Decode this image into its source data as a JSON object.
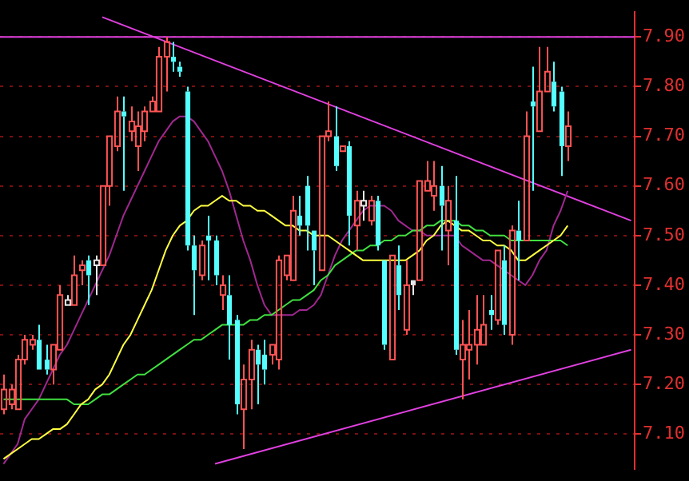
{
  "chart_data": {
    "type": "candlestick",
    "categories": [
      null,
      null,
      null,
      null,
      null,
      null,
      null,
      null,
      null,
      null,
      null,
      null,
      null,
      null,
      null,
      null,
      null,
      null,
      null,
      null,
      null,
      null,
      null,
      null,
      null,
      null,
      null,
      null,
      null,
      null,
      null,
      null,
      null,
      null,
      null,
      null,
      null,
      null,
      null,
      null,
      null,
      null,
      null,
      null,
      null,
      null,
      null,
      null,
      null,
      null,
      null,
      null,
      null,
      null,
      null,
      null,
      null,
      null,
      null,
      null,
      null,
      null,
      null,
      null,
      null,
      null,
      null,
      null,
      null,
      null,
      null,
      null,
      null,
      null,
      null,
      null,
      null,
      null,
      null,
      null,
      null,
      null,
      null,
      null,
      null,
      null,
      null,
      null,
      null,
      null
    ],
    "ohlc": [
      [
        7.15,
        7.22,
        7.14,
        7.19
      ],
      [
        7.16,
        7.2,
        7.15,
        7.19
      ],
      [
        7.15,
        7.26,
        7.15,
        7.25
      ],
      [
        7.25,
        7.3,
        7.24,
        7.29
      ],
      [
        7.28,
        7.3,
        7.27,
        7.29
      ],
      [
        7.29,
        7.32,
        7.23,
        7.23
      ],
      [
        7.25,
        7.28,
        7.22,
        7.23
      ],
      [
        7.23,
        7.28,
        7.2,
        7.28
      ],
      [
        7.27,
        7.4,
        7.27,
        7.38
      ],
      [
        7.36,
        7.38,
        7.36,
        7.37
      ],
      [
        7.36,
        7.46,
        7.36,
        7.42
      ],
      [
        7.43,
        7.45,
        7.4,
        7.44
      ],
      [
        7.45,
        7.46,
        7.36,
        7.42
      ],
      [
        7.44,
        7.46,
        7.38,
        7.45
      ],
      [
        7.44,
        7.6,
        7.44,
        7.6
      ],
      [
        7.6,
        7.7,
        7.56,
        7.7
      ],
      [
        7.68,
        7.78,
        7.67,
        7.75
      ],
      [
        7.75,
        7.78,
        7.59,
        7.74
      ],
      [
        7.71,
        7.76,
        7.69,
        7.73
      ],
      [
        7.68,
        7.75,
        7.63,
        7.72
      ],
      [
        7.71,
        7.76,
        7.69,
        7.75
      ],
      [
        7.75,
        7.78,
        7.75,
        7.77
      ],
      [
        7.75,
        7.88,
        7.75,
        7.86
      ],
      [
        7.86,
        7.9,
        7.79,
        7.89
      ],
      [
        7.86,
        7.89,
        7.83,
        7.85
      ],
      [
        7.84,
        7.85,
        7.82,
        7.83
      ],
      [
        7.79,
        7.8,
        7.47,
        7.48
      ],
      [
        7.48,
        7.5,
        7.34,
        7.43
      ],
      [
        7.42,
        7.49,
        7.41,
        7.48
      ],
      [
        7.5,
        7.54,
        7.41,
        7.49
      ],
      [
        7.49,
        7.5,
        7.4,
        7.42
      ],
      [
        7.38,
        7.42,
        7.35,
        7.4
      ],
      [
        7.38,
        7.42,
        7.25,
        7.32
      ],
      [
        7.33,
        7.34,
        7.14,
        7.16
      ],
      [
        7.15,
        7.24,
        7.07,
        7.21
      ],
      [
        7.21,
        7.29,
        7.15,
        7.27
      ],
      [
        7.27,
        7.28,
        7.16,
        7.24
      ],
      [
        7.26,
        7.29,
        7.2,
        7.23
      ],
      [
        7.26,
        7.28,
        7.24,
        7.28
      ],
      [
        7.25,
        7.46,
        7.23,
        7.45
      ],
      [
        7.42,
        7.46,
        7.41,
        7.46
      ],
      [
        7.41,
        7.58,
        7.41,
        7.55
      ],
      [
        7.54,
        7.58,
        7.5,
        7.52
      ],
      [
        7.6,
        7.62,
        7.47,
        7.52
      ],
      [
        7.51,
        7.51,
        7.4,
        7.47
      ],
      [
        7.43,
        7.7,
        7.43,
        7.7
      ],
      [
        7.7,
        7.77,
        7.69,
        7.71
      ],
      [
        7.7,
        7.76,
        7.63,
        7.64
      ],
      [
        7.67,
        7.68,
        7.67,
        7.68
      ],
      [
        7.68,
        7.69,
        7.48,
        7.54
      ],
      [
        7.52,
        7.59,
        7.47,
        7.57
      ],
      [
        7.56,
        7.59,
        7.53,
        7.57
      ],
      [
        7.53,
        7.58,
        7.52,
        7.57
      ],
      [
        7.57,
        7.58,
        7.47,
        7.48
      ],
      [
        7.45,
        7.45,
        7.27,
        7.28
      ],
      [
        7.25,
        7.46,
        7.25,
        7.46
      ],
      [
        7.44,
        7.48,
        7.35,
        7.38
      ],
      [
        7.31,
        7.45,
        7.3,
        7.4
      ],
      [
        7.41,
        7.41,
        7.38,
        7.4
      ],
      [
        7.41,
        7.61,
        7.41,
        7.61
      ],
      [
        7.59,
        7.65,
        7.59,
        7.61
      ],
      [
        7.58,
        7.65,
        7.55,
        7.6
      ],
      [
        7.6,
        7.64,
        7.47,
        7.56
      ],
      [
        7.51,
        7.6,
        7.44,
        7.57
      ],
      [
        7.53,
        7.62,
        7.26,
        7.27
      ],
      [
        7.25,
        7.33,
        7.17,
        7.28
      ],
      [
        7.27,
        7.35,
        7.21,
        7.28
      ],
      [
        7.28,
        7.38,
        7.24,
        7.31
      ],
      [
        7.28,
        7.38,
        7.28,
        7.32
      ],
      [
        7.35,
        7.38,
        7.31,
        7.34
      ],
      [
        7.33,
        7.47,
        7.32,
        7.47
      ],
      [
        7.45,
        7.48,
        7.3,
        7.32
      ],
      [
        7.3,
        7.52,
        7.28,
        7.51
      ],
      [
        7.51,
        7.57,
        7.41,
        7.49
      ],
      [
        7.49,
        7.75,
        7.49,
        7.7
      ],
      [
        7.77,
        7.84,
        7.59,
        7.76
      ],
      [
        7.71,
        7.88,
        7.71,
        7.79
      ],
      [
        7.79,
        7.88,
        7.79,
        7.83
      ],
      [
        7.81,
        7.85,
        7.75,
        7.76
      ],
      [
        7.79,
        7.8,
        7.62,
        7.68
      ],
      [
        7.68,
        7.75,
        7.65,
        7.72
      ],
      null,
      null,
      null,
      null,
      null,
      null,
      null,
      null,
      null
    ],
    "colors": [
      "#ff5454",
      "#ff5454",
      "#ff5454",
      "#ff5454",
      "#ff5454",
      "#54ffff",
      "#54ffff",
      "#ff5454",
      "#ff5454",
      "#e8e8e8",
      "#ff5454",
      "#ff5454",
      "#54ffff",
      "#e8e8e8",
      "#ff5454",
      "#ff5454",
      "#ff5454",
      "#54ffff",
      "#ff5454",
      "#ff5454",
      "#ff5454",
      "#ff5454",
      "#ff5454",
      "#ff5454",
      "#54ffff",
      "#54ffff",
      "#54ffff",
      "#54ffff",
      "#ff5454",
      "#54ffff",
      "#54ffff",
      "#ff5454",
      "#54ffff",
      "#54ffff",
      "#ff5454",
      "#ff5454",
      "#54ffff",
      "#54ffff",
      "#ff5454",
      "#ff5454",
      "#ff5454",
      "#ff5454",
      "#54ffff",
      "#54ffff",
      "#54ffff",
      "#ff5454",
      "#ff5454",
      "#54ffff",
      "#ff5454",
      "#54ffff",
      "#ff5454",
      "#e8e8e8",
      "#ff5454",
      "#54ffff",
      "#54ffff",
      "#ff5454",
      "#54ffff",
      "#ff5454",
      "#e8e8e8",
      "#ff5454",
      "#ff5454",
      "#ff5454",
      "#54ffff",
      "#ff5454",
      "#54ffff",
      "#ff5454",
      "#ff5454",
      "#ff5454",
      "#ff5454",
      "#54ffff",
      "#ff5454",
      "#54ffff",
      "#ff5454",
      "#54ffff",
      "#ff5454",
      "#54ffff",
      "#ff5454",
      "#ff5454",
      "#54ffff",
      "#54ffff",
      "#ff5454",
      null,
      null,
      null,
      null,
      null,
      null,
      null,
      null,
      null
    ],
    "series": [
      {
        "type": "line",
        "color": "#ffff40",
        "values": [
          7.05,
          7.06,
          7.07,
          7.08,
          7.09,
          7.09,
          7.1,
          7.11,
          7.11,
          7.12,
          7.14,
          7.16,
          7.17,
          7.19,
          7.2,
          7.22,
          7.25,
          7.28,
          7.3,
          7.33,
          7.36,
          7.39,
          7.43,
          7.47,
          7.5,
          7.52,
          7.53,
          7.55,
          7.56,
          7.56,
          7.57,
          7.58,
          7.57,
          7.57,
          7.56,
          7.56,
          7.55,
          7.55,
          7.54,
          7.53,
          7.52,
          7.52,
          7.51,
          7.51,
          7.5,
          7.5,
          7.5,
          7.49,
          7.48,
          7.47,
          7.46,
          7.45,
          7.45,
          7.45,
          7.45,
          7.45,
          7.45,
          7.45,
          7.46,
          7.47,
          7.49,
          7.5,
          7.52,
          7.53,
          7.52,
          7.51,
          7.51,
          7.5,
          7.49,
          7.49,
          7.48,
          7.48,
          7.47,
          7.45,
          7.45,
          7.46,
          7.47,
          7.48,
          7.49,
          7.5,
          7.52,
          null,
          null,
          null,
          null,
          null,
          null,
          null,
          null,
          null
        ]
      },
      {
        "type": "line",
        "color": "#40e040",
        "values": [
          7.17,
          7.17,
          7.17,
          7.17,
          7.17,
          7.17,
          7.17,
          7.17,
          7.17,
          7.17,
          7.16,
          7.16,
          7.16,
          7.17,
          7.18,
          7.18,
          7.19,
          7.2,
          7.21,
          7.22,
          7.22,
          7.23,
          7.24,
          7.25,
          7.26,
          7.27,
          7.28,
          7.29,
          7.29,
          7.3,
          7.31,
          7.32,
          7.32,
          7.32,
          7.32,
          7.33,
          7.33,
          7.34,
          7.34,
          7.35,
          7.36,
          7.37,
          7.37,
          7.38,
          7.39,
          7.41,
          7.42,
          7.44,
          7.45,
          7.46,
          7.47,
          7.47,
          7.48,
          7.48,
          7.49,
          7.49,
          7.5,
          7.5,
          7.51,
          7.51,
          7.52,
          7.52,
          7.53,
          7.53,
          7.53,
          7.52,
          7.52,
          7.51,
          7.51,
          7.5,
          7.5,
          7.5,
          7.49,
          7.49,
          7.49,
          7.49,
          7.49,
          7.49,
          7.49,
          7.49,
          7.48,
          null,
          null,
          null,
          null,
          null,
          null,
          null,
          null,
          null
        ]
      },
      {
        "type": "line",
        "color": "#a02890",
        "values": [
          7.04,
          7.06,
          7.08,
          7.13,
          7.15,
          7.17,
          7.2,
          7.23,
          7.26,
          7.28,
          7.31,
          7.34,
          7.37,
          7.4,
          7.43,
          7.46,
          7.5,
          7.54,
          7.57,
          7.6,
          7.63,
          7.66,
          7.69,
          7.71,
          7.73,
          7.74,
          7.74,
          7.73,
          7.71,
          7.69,
          7.66,
          7.63,
          7.59,
          7.54,
          7.49,
          7.45,
          7.4,
          7.36,
          7.34,
          7.34,
          7.34,
          7.34,
          7.35,
          7.35,
          7.36,
          7.38,
          7.42,
          7.46,
          7.49,
          7.51,
          7.53,
          7.55,
          7.56,
          7.56,
          7.56,
          7.55,
          7.53,
          7.52,
          7.51,
          7.51,
          7.5,
          7.5,
          7.5,
          7.5,
          7.5,
          7.48,
          7.47,
          7.46,
          7.45,
          7.45,
          7.44,
          7.43,
          7.42,
          7.41,
          7.4,
          7.42,
          7.45,
          7.47,
          7.52,
          7.55,
          7.59,
          null,
          null,
          null,
          null,
          null,
          null,
          null,
          null,
          null
        ]
      },
      {
        "type": "line",
        "color": "#e040e0",
        "values": [
          null,
          null,
          null,
          null,
          null,
          null,
          null,
          null,
          null,
          null,
          null,
          null,
          null,
          null,
          7.94,
          null,
          null,
          null,
          null,
          null,
          null,
          null,
          null,
          null,
          null,
          null,
          null,
          null,
          null,
          null,
          null,
          null,
          null,
          null,
          null,
          null,
          null,
          null,
          null,
          null,
          null,
          null,
          null,
          null,
          null,
          null,
          null,
          null,
          null,
          null,
          null,
          null,
          null,
          null,
          null,
          null,
          null,
          null,
          null,
          null,
          null,
          null,
          null,
          null,
          null,
          null,
          null,
          null,
          null,
          null,
          null,
          null,
          null,
          null,
          null,
          null,
          null,
          null,
          null,
          null,
          null,
          null,
          null,
          null,
          null,
          null,
          null,
          null,
          null,
          7.53
        ]
      },
      {
        "type": "line",
        "color": "#e040e0",
        "values": [
          null,
          null,
          null,
          null,
          null,
          null,
          null,
          null,
          null,
          null,
          null,
          null,
          null,
          null,
          null,
          null,
          null,
          null,
          null,
          null,
          null,
          null,
          null,
          null,
          null,
          null,
          null,
          null,
          null,
          null,
          7.04,
          null,
          null,
          null,
          null,
          null,
          null,
          null,
          null,
          null,
          null,
          null,
          null,
          null,
          null,
          null,
          null,
          null,
          null,
          null,
          null,
          null,
          null,
          null,
          null,
          null,
          null,
          null,
          null,
          null,
          null,
          null,
          null,
          null,
          null,
          null,
          null,
          null,
          null,
          null,
          null,
          null,
          null,
          null,
          null,
          null,
          null,
          null,
          null,
          null,
          null,
          null,
          null,
          null,
          null,
          null,
          null,
          null,
          null,
          7.27
        ]
      }
    ],
    "ref_lines": [
      {
        "axis": "y",
        "value": 7.9,
        "color": "#e040e0"
      }
    ],
    "ylim": [
      7.03,
      7.95
    ],
    "yticks": [
      {
        "value": 7.1,
        "label": "7.10"
      },
      {
        "value": 7.2,
        "label": "7.20"
      },
      {
        "value": 7.3,
        "label": "7.30"
      },
      {
        "value": 7.4,
        "label": "7.40"
      },
      {
        "value": 7.5,
        "label": "7.50"
      },
      {
        "value": 7.6,
        "label": "7.60"
      },
      {
        "value": 7.7,
        "label": "7.70"
      },
      {
        "value": 7.8,
        "label": "7.80"
      },
      {
        "value": 7.9,
        "label": "7.90"
      }
    ],
    "grid": "y",
    "legend": false,
    "tick_labels": "y",
    "marker": "none"
  }
}
